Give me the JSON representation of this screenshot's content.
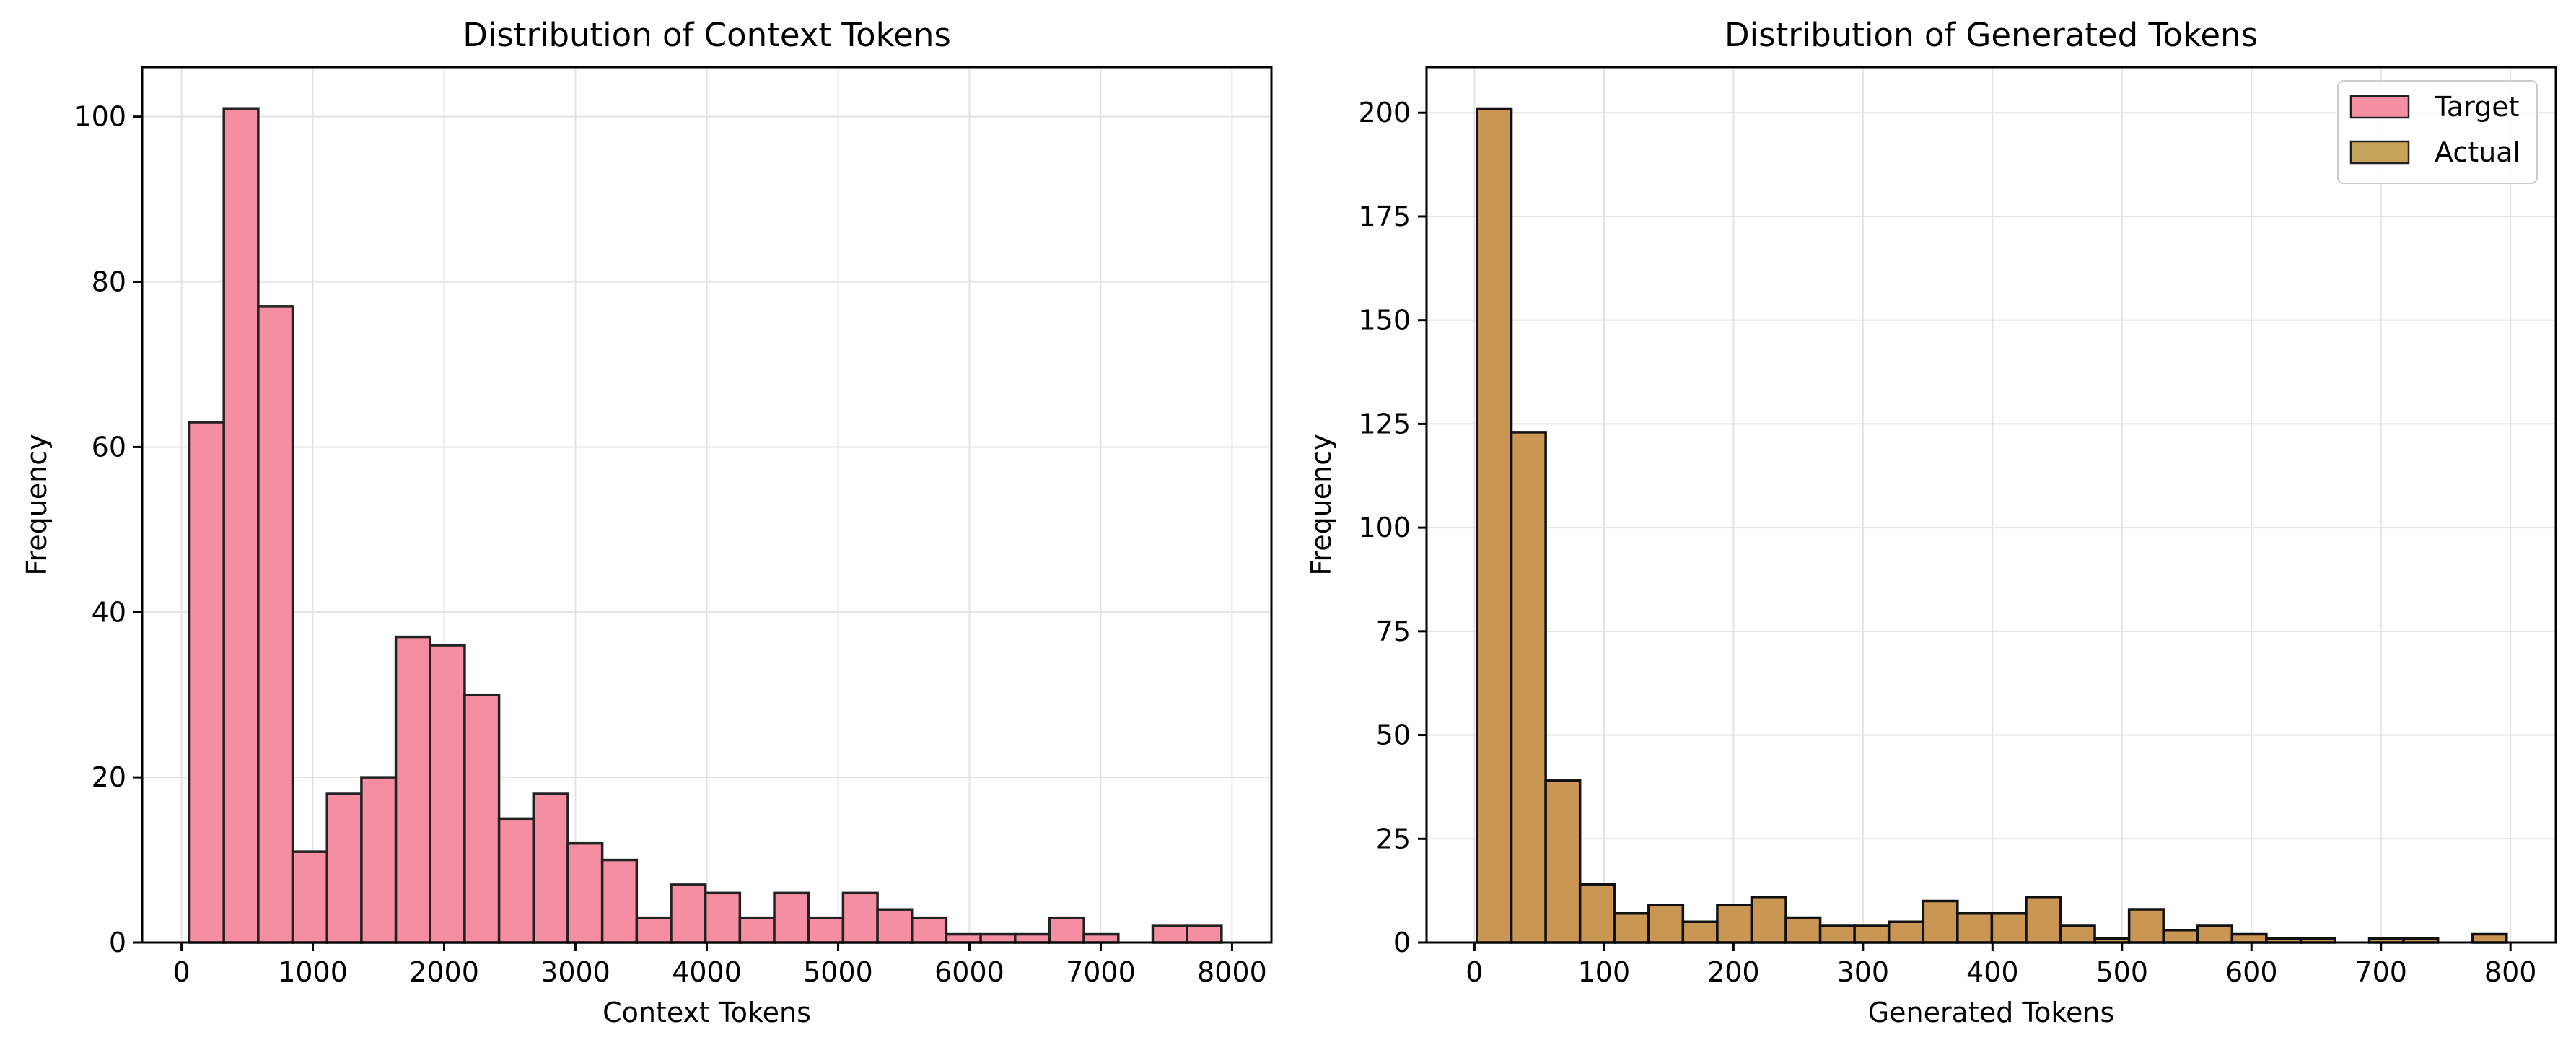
{
  "figure": {
    "panels": [
      {
        "title": "Distribution of Context Tokens",
        "xlabel": "Context Tokens",
        "ylabel": "Frequency"
      },
      {
        "title": "Distribution of Generated Tokens",
        "xlabel": "Generated Tokens",
        "ylabel": "Frequency"
      }
    ],
    "legend": {
      "items": [
        "Target",
        "Actual"
      ]
    }
  },
  "chart_data": [
    {
      "type": "bar",
      "subtype": "histogram",
      "title": "Distribution of Context Tokens",
      "xlabel": "Context Tokens",
      "ylabel": "Frequency",
      "xlim": [
        -300,
        8300
      ],
      "ylim": [
        0,
        106
      ],
      "xticks": [
        0,
        1000,
        2000,
        3000,
        4000,
        5000,
        6000,
        7000,
        8000
      ],
      "yticks": [
        0,
        20,
        40,
        60,
        80,
        100
      ],
      "grid": true,
      "legend": null,
      "bin_edges": [
        60,
        322,
        584,
        846,
        1108,
        1370,
        1632,
        1894,
        2156,
        2418,
        2680,
        2942,
        3204,
        3466,
        3728,
        3990,
        4252,
        4514,
        4776,
        5038,
        5300,
        5562,
        5824,
        6086,
        6348,
        6610,
        6872,
        7134,
        7396,
        7658,
        7920
      ],
      "values": [
        63,
        101,
        77,
        11,
        18,
        20,
        37,
        36,
        30,
        15,
        18,
        12,
        10,
        3,
        7,
        6,
        3,
        6,
        3,
        6,
        4,
        3,
        1,
        1,
        1,
        3,
        1,
        0,
        2,
        2
      ],
      "colors": {
        "fill": "#f58ea3",
        "edge": "#222222"
      }
    },
    {
      "type": "bar",
      "subtype": "histogram",
      "title": "Distribution of Generated Tokens",
      "xlabel": "Generated Tokens",
      "ylabel": "Frequency",
      "xlim": [
        -37,
        835
      ],
      "ylim": [
        0,
        211
      ],
      "xticks": [
        0,
        100,
        200,
        300,
        400,
        500,
        600,
        700,
        800
      ],
      "yticks": [
        0,
        25,
        50,
        75,
        100,
        125,
        150,
        175,
        200
      ],
      "grid": true,
      "legend": {
        "position": "top-right",
        "entries": [
          "Target",
          "Actual"
        ]
      },
      "bin_edges": [
        2,
        28.5,
        55,
        81.5,
        108,
        134.5,
        161,
        187.5,
        214,
        240.5,
        267,
        293.5,
        320,
        346.5,
        373,
        399.5,
        426,
        452.5,
        479,
        505.5,
        532,
        558.5,
        585,
        611.5,
        638,
        664.5,
        691,
        717.5,
        744,
        770.5,
        797
      ],
      "series": [
        {
          "name": "Target",
          "values": [
            201,
            123,
            39,
            14,
            7,
            9,
            5,
            9,
            11,
            6,
            4,
            4,
            5,
            10,
            7,
            7,
            11,
            4,
            1,
            8,
            3,
            4,
            2,
            1,
            1,
            0,
            1,
            1,
            0,
            2
          ],
          "color": "#f58ea3"
        },
        {
          "name": "Actual",
          "values": [
            201,
            123,
            39,
            14,
            7,
            9,
            5,
            9,
            11,
            6,
            4,
            4,
            5,
            10,
            7,
            7,
            11,
            4,
            1,
            8,
            3,
            4,
            2,
            1,
            1,
            0,
            1,
            1,
            0,
            2
          ],
          "color": "#c6a35b"
        }
      ],
      "displayed_fill": "#c99653",
      "colors": {
        "edge": "#111111"
      }
    }
  ]
}
